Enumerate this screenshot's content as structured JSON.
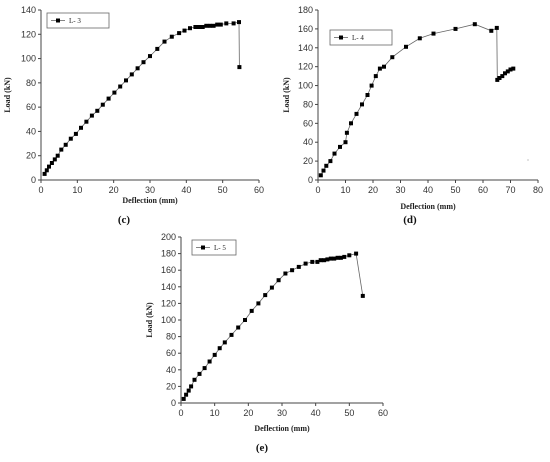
{
  "chart_data": [
    {
      "type": "line",
      "panel_label": "(c)",
      "xlabel": "Deflection (mm)",
      "ylabel": "Load (kN)",
      "xlim": [
        0,
        60
      ],
      "ylim": [
        0,
        140
      ],
      "xticks": [
        "0",
        "10",
        "20",
        "30",
        "40",
        "50",
        "60"
      ],
      "yticks": [
        "0",
        "20",
        "40",
        "60",
        "80",
        "100",
        "120",
        "140"
      ],
      "legend_position": "top-left",
      "series": [
        {
          "name": "L- 3",
          "x": [
            1.0,
            1.6,
            2.2,
            3.0,
            3.8,
            4.6,
            5.6,
            6.8,
            8.2,
            9.6,
            11.0,
            12.5,
            14.0,
            15.5,
            17.0,
            18.6,
            20.2,
            21.8,
            23.4,
            25.0,
            26.6,
            28.2,
            30.0,
            32.0,
            34.0,
            36.0,
            38.0,
            39.5,
            41.0,
            42.5,
            43.5,
            44.5,
            45.5,
            46.5,
            47.5,
            48.5,
            49.5,
            51.0,
            53.0,
            54.5,
            54.6
          ],
          "y": [
            5,
            8,
            11,
            14,
            17,
            20,
            25,
            29,
            34,
            38,
            43,
            48,
            53,
            57,
            62,
            67,
            72,
            77,
            82,
            87,
            92,
            97,
            102,
            108,
            114,
            118,
            121,
            123,
            125,
            126,
            126,
            126,
            127,
            127,
            127,
            128,
            128,
            129,
            129,
            130,
            93
          ]
        }
      ]
    },
    {
      "type": "line",
      "panel_label": "(d)",
      "xlabel": "Deflection (mm)",
      "ylabel": "Load (kN)",
      "xlim": [
        0,
        80
      ],
      "ylim": [
        0,
        180
      ],
      "xticks": [
        "0",
        "10",
        "20",
        "30",
        "40",
        "50",
        "60",
        "70",
        "80"
      ],
      "yticks": [
        "0",
        "20",
        "40",
        "60",
        "80",
        "100",
        "120",
        "140",
        "160",
        "180"
      ],
      "legend_position": "top-left",
      "series": [
        {
          "name": "L- 4",
          "x": [
            1.0,
            2.0,
            3.0,
            4.5,
            6.0,
            8.0,
            10.0,
            10.5,
            12.0,
            14.0,
            16.0,
            18.0,
            19.5,
            21.0,
            22.5,
            24.0,
            27.0,
            32.0,
            37.0,
            42.0,
            50.0,
            57.0,
            63.0,
            65.0,
            65.2,
            66.0,
            67.0,
            68.0,
            69.0,
            70.0,
            71.0
          ],
          "y": [
            5,
            10,
            15,
            20,
            28,
            35,
            40,
            50,
            60,
            70,
            80,
            90,
            100,
            110,
            118,
            120,
            130,
            141,
            150,
            155,
            160,
            165,
            158,
            161,
            106,
            108,
            110,
            113,
            115,
            117,
            118
          ]
        }
      ]
    },
    {
      "type": "line",
      "panel_label": "(e)",
      "xlabel": "Deflection (mm)",
      "ylabel": "Load (kN)",
      "xlim": [
        0,
        60
      ],
      "ylim": [
        0,
        200
      ],
      "xticks": [
        "0",
        "10",
        "20",
        "30",
        "40",
        "50",
        "60"
      ],
      "yticks": [
        "0",
        "20",
        "40",
        "60",
        "80",
        "100",
        "120",
        "140",
        "160",
        "180",
        "200"
      ],
      "legend_position": "top-left",
      "series": [
        {
          "name": "L- 5",
          "x": [
            0.8,
            1.5,
            2.3,
            3.0,
            4.0,
            5.5,
            7.0,
            8.5,
            10.0,
            11.5,
            13.0,
            15.0,
            17.0,
            19.0,
            21.0,
            23.0,
            25.0,
            27.0,
            29.0,
            31.0,
            33.0,
            35.0,
            37.0,
            39.0,
            40.5,
            41.5,
            42.5,
            43.5,
            44.5,
            45.5,
            46.5,
            47.5,
            48.5,
            50.0,
            52.0,
            54.0
          ],
          "y": [
            5,
            10,
            15,
            20,
            28,
            35,
            42,
            50,
            58,
            66,
            73,
            82,
            91,
            100,
            111,
            120,
            130,
            139,
            148,
            156,
            160,
            164,
            168,
            170,
            170,
            172,
            172,
            173,
            174,
            174,
            175,
            175,
            176,
            178,
            180,
            129
          ]
        }
      ]
    }
  ]
}
